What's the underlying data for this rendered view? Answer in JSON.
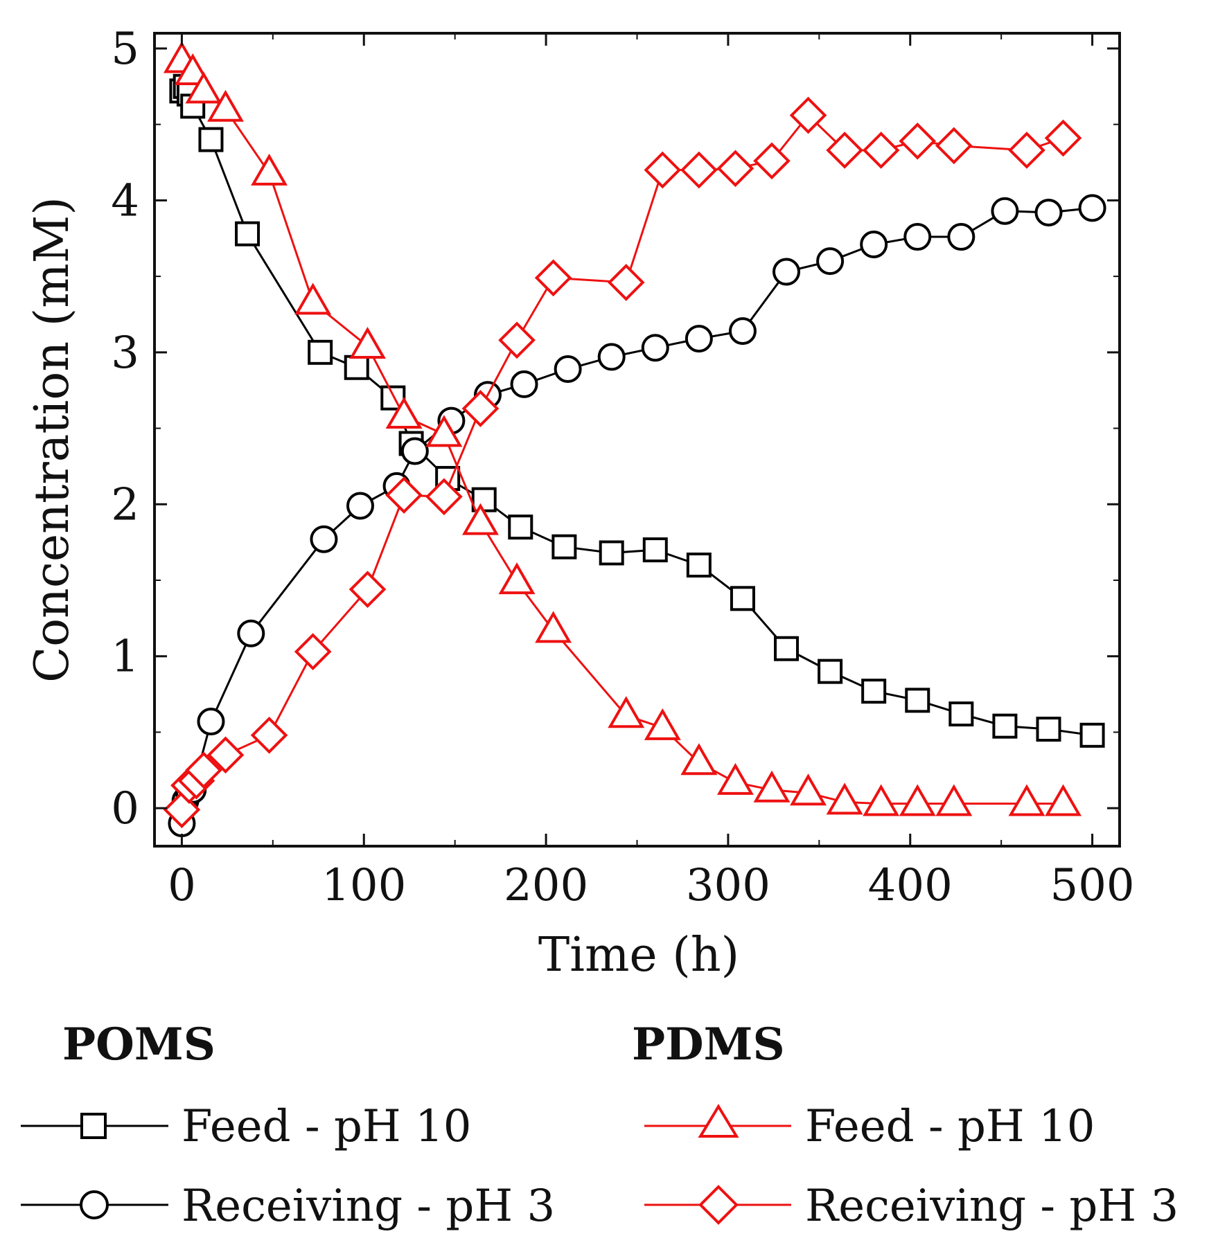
{
  "chart_data": {
    "type": "line",
    "title": "",
    "xlabel": "Time (h)",
    "ylabel": "Concentration (mM)",
    "xlim": [
      -15,
      515
    ],
    "ylim": [
      -0.25,
      5.1
    ],
    "xticks": [
      0,
      100,
      200,
      300,
      400,
      500
    ],
    "yticks": [
      0,
      1,
      2,
      3,
      4,
      5
    ],
    "xtick_labels": [
      "0",
      "100",
      "200",
      "300",
      "400",
      "500"
    ],
    "ytick_labels": [
      "0",
      "1",
      "2",
      "3",
      "4",
      "5"
    ],
    "grid": false,
    "legend": {
      "placement": "bottom",
      "groups": [
        {
          "title": "POMS",
          "entries": [
            "Feed - pH 10",
            "Receiving - pH 3"
          ]
        },
        {
          "title": "PDMS",
          "entries": [
            "Feed - pH 10",
            "Receiving - pH 3"
          ]
        }
      ]
    },
    "series": [
      {
        "name": "Feed - pH 10",
        "group": "POMS",
        "color": "#000000",
        "marker": "square",
        "x": [
          0,
          2,
          4,
          6,
          16,
          36,
          76,
          96,
          116,
          126,
          146,
          166,
          186,
          210,
          236,
          260,
          284,
          308,
          332,
          356,
          380,
          404,
          428,
          452,
          476,
          500
        ],
        "y": [
          4.72,
          4.75,
          4.7,
          4.62,
          4.4,
          3.78,
          3.0,
          2.9,
          2.7,
          2.4,
          2.17,
          2.03,
          1.85,
          1.72,
          1.68,
          1.7,
          1.6,
          1.38,
          1.05,
          0.9,
          0.77,
          0.71,
          0.62,
          0.54,
          0.52,
          0.48
        ]
      },
      {
        "name": "Receiving - pH 3",
        "group": "POMS",
        "color": "#000000",
        "marker": "circle",
        "x": [
          0,
          2,
          4,
          6,
          16,
          38,
          78,
          98,
          118,
          128,
          148,
          168,
          188,
          212,
          236,
          260,
          284,
          308,
          332,
          356,
          380,
          404,
          428,
          452,
          476,
          500
        ],
        "y": [
          -0.1,
          0.05,
          0.1,
          0.12,
          0.57,
          1.15,
          1.77,
          1.99,
          2.12,
          2.35,
          2.55,
          2.72,
          2.79,
          2.89,
          2.97,
          3.03,
          3.09,
          3.14,
          3.53,
          3.6,
          3.71,
          3.76,
          3.76,
          3.93,
          3.92,
          3.95
        ]
      },
      {
        "name": "Feed - pH 10",
        "group": "PDMS",
        "color": "#ee1111",
        "marker": "triangle",
        "x": [
          0,
          6,
          12,
          24,
          48,
          72,
          102,
          122,
          144,
          164,
          184,
          204,
          244,
          264,
          284,
          304,
          324,
          344,
          364,
          384,
          404,
          424,
          464,
          484
        ],
        "y": [
          4.92,
          4.84,
          4.72,
          4.6,
          4.18,
          3.33,
          3.04,
          2.58,
          2.46,
          1.88,
          1.49,
          1.17,
          0.61,
          0.53,
          0.3,
          0.17,
          0.12,
          0.1,
          0.04,
          0.03,
          0.03,
          0.03,
          0.03,
          0.03
        ]
      },
      {
        "name": "Receiving - pH 3",
        "group": "PDMS",
        "color": "#ee1111",
        "marker": "diamond",
        "x": [
          0,
          4,
          8,
          12,
          24,
          48,
          72,
          102,
          122,
          144,
          164,
          184,
          204,
          244,
          264,
          284,
          304,
          324,
          344,
          364,
          384,
          404,
          424,
          464,
          484
        ],
        "y": [
          -0.01,
          0.15,
          0.18,
          0.25,
          0.35,
          0.48,
          1.03,
          1.44,
          2.06,
          2.05,
          2.63,
          3.08,
          3.49,
          3.46,
          4.2,
          4.2,
          4.21,
          4.26,
          4.56,
          4.33,
          4.33,
          4.39,
          4.36,
          4.33,
          4.41
        ]
      }
    ]
  }
}
